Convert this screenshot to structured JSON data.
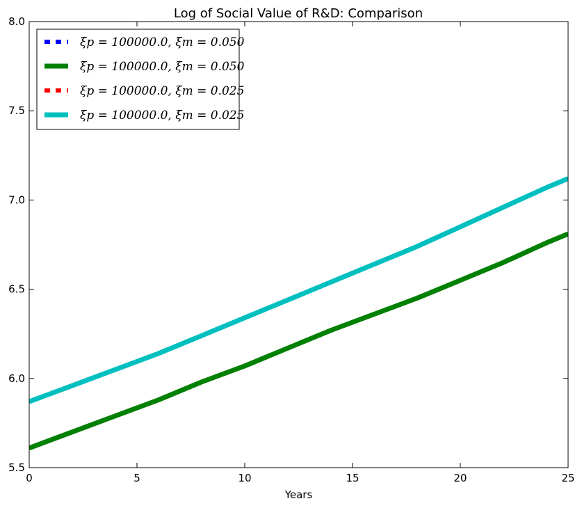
{
  "chart_data": {
    "type": "line",
    "title": "Log of Social Value of R&D: Comparison",
    "xlabel": "Years",
    "ylabel": "",
    "xlim": [
      0,
      25
    ],
    "ylim": [
      5.5,
      8.0
    ],
    "xticks": [
      0,
      5,
      10,
      15,
      20,
      25
    ],
    "yticks": [
      5.5,
      6.0,
      6.5,
      7.0,
      7.5,
      8.0
    ],
    "xtick_labels": [
      "0",
      "5",
      "10",
      "15",
      "20",
      "25"
    ],
    "ytick_labels": [
      "5.5",
      "6.0",
      "6.5",
      "7.0",
      "7.5",
      "8.0"
    ],
    "grid": false,
    "legend_position": "upper-left",
    "x": [
      0,
      2,
      4,
      6,
      8,
      10,
      12,
      14,
      16,
      18,
      20,
      22,
      24,
      25
    ],
    "series": [
      {
        "name": "ξp = 100000.0, ξm = 0.050",
        "style": "dotted",
        "color": "#0000ff",
        "values": [
          5.61,
          5.7,
          5.79,
          5.88,
          5.98,
          6.07,
          6.17,
          6.27,
          6.36,
          6.45,
          6.55,
          6.65,
          6.76,
          6.81
        ]
      },
      {
        "name": "ξp = 100000.0, ξm = 0.050",
        "style": "solid",
        "color": "#008000",
        "values": [
          5.61,
          5.7,
          5.79,
          5.88,
          5.98,
          6.07,
          6.17,
          6.27,
          6.36,
          6.45,
          6.55,
          6.65,
          6.76,
          6.81
        ]
      },
      {
        "name": "ξp = 100000.0, ξm = 0.025",
        "style": "dotted",
        "color": "#ff0000",
        "values": [
          5.87,
          5.96,
          6.05,
          6.14,
          6.24,
          6.34,
          6.44,
          6.54,
          6.64,
          6.74,
          6.85,
          6.96,
          7.07,
          7.12
        ]
      },
      {
        "name": "ξp = 100000.0, ξm = 0.025",
        "style": "solid",
        "color": "#00bfbf",
        "values": [
          5.87,
          5.96,
          6.05,
          6.14,
          6.24,
          6.34,
          6.44,
          6.54,
          6.64,
          6.74,
          6.85,
          6.96,
          7.07,
          7.12
        ]
      }
    ]
  }
}
